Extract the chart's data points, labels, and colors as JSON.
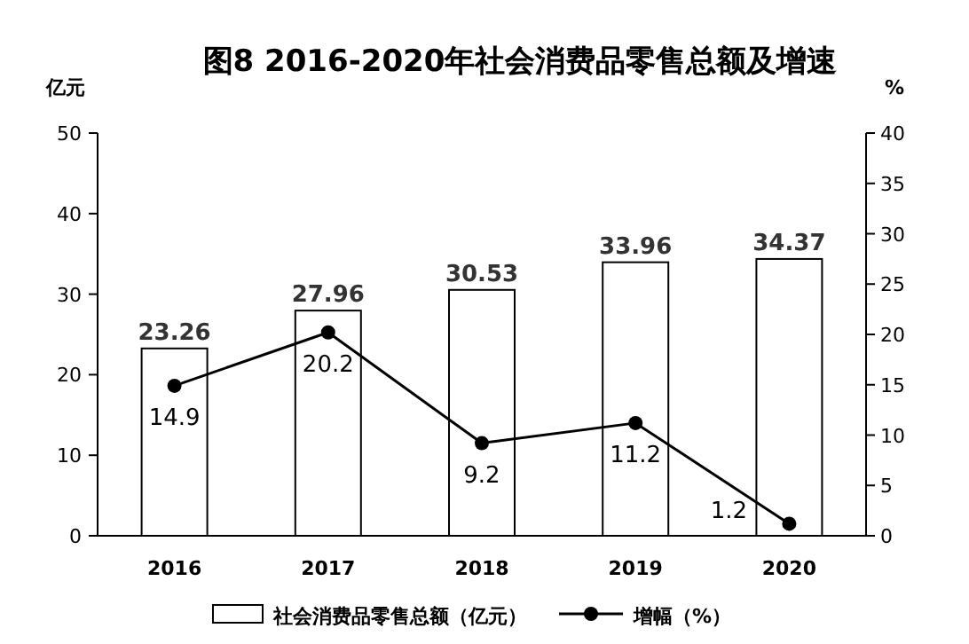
{
  "chart_data": {
    "type": "bar",
    "title": "图8  2016-2020年社会消费品零售总额及增速",
    "categories": [
      "2016",
      "2017",
      "2018",
      "2019",
      "2020"
    ],
    "ylabel": "亿元",
    "y2label": "%",
    "ylim": [
      0,
      50
    ],
    "yticks": [
      0,
      10,
      20,
      30,
      40,
      50
    ],
    "y2lim": [
      0,
      40
    ],
    "y2ticks": [
      0,
      5,
      10,
      15,
      20,
      25,
      30,
      35,
      40
    ],
    "data_labels": true,
    "legend": "bottom",
    "grid": false,
    "series": [
      {
        "name": "社会消费品零售总额（亿元）",
        "color": "#ffffff",
        "values": [
          23.26,
          27.96,
          30.53,
          33.96,
          34.37
        ]
      },
      {
        "name": "增幅（%）",
        "type": "line",
        "axis": "y2",
        "color": "#000000",
        "marker": "circle",
        "line_style": "solid",
        "values": [
          14.9,
          20.2,
          9.2,
          11.2,
          1.2
        ]
      }
    ]
  }
}
